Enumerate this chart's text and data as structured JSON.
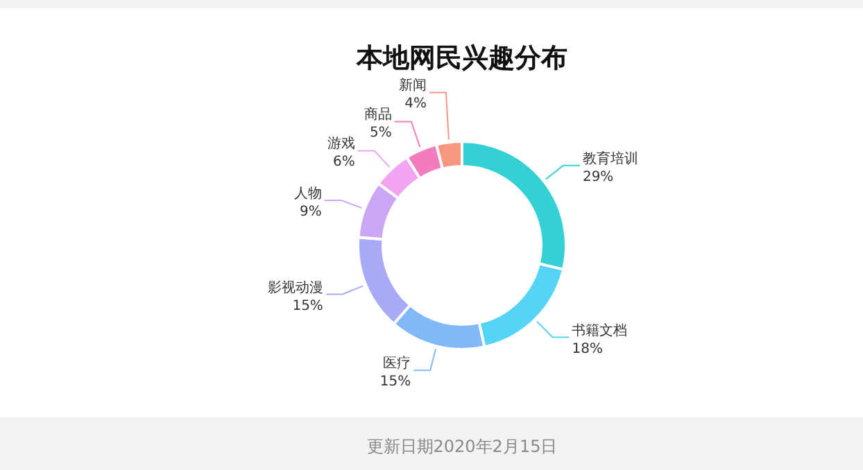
{
  "chart_data": {
    "type": "donut",
    "title": "本地网民兴趣分布",
    "categories": [
      "教育培训",
      "书籍文档",
      "医疗",
      "影视动漫",
      "人物",
      "游戏",
      "商品",
      "新闻"
    ],
    "values": [
      29,
      18,
      15,
      15,
      9,
      6,
      5,
      4
    ],
    "value_labels": [
      "29%",
      "18%",
      "15%",
      "15%",
      "9%",
      "6%",
      "5%",
      "4%"
    ],
    "colors": [
      "#33d0d4",
      "#55d4f8",
      "#80b8f8",
      "#a8aaf8",
      "#caa6f5",
      "#f2a4f2",
      "#f27cbc",
      "#f7977f"
    ],
    "annotations": [
      "更新日期2020年2月15日"
    ]
  }
}
